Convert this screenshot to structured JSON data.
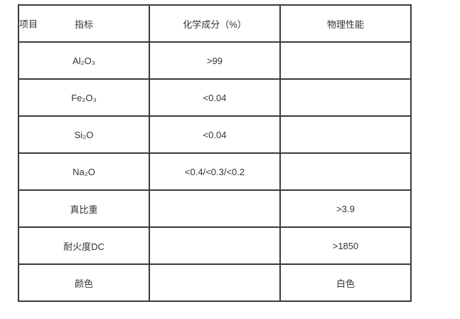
{
  "table": {
    "header": {
      "corner": "项目",
      "col1": "指标",
      "col2": "化学成分（%）",
      "col3": "物理性能"
    },
    "rows": [
      {
        "name": "Al₂O₃",
        "chem": ">99",
        "phys": ""
      },
      {
        "name": "Fe₂O₃",
        "chem": "<0.04",
        "phys": ""
      },
      {
        "name": "Si₂O",
        "chem": "<0.04",
        "phys": ""
      },
      {
        "name": "Na₂O",
        "chem": "<0.4/<0.3/<0.2",
        "phys": ""
      },
      {
        "name": "真比重",
        "chem": "",
        "phys": ">3.9"
      },
      {
        "name": "耐火度DC",
        "chem": "",
        "phys": ">1850"
      },
      {
        "name": "颜色",
        "chem": "",
        "phys": "白色"
      }
    ]
  }
}
